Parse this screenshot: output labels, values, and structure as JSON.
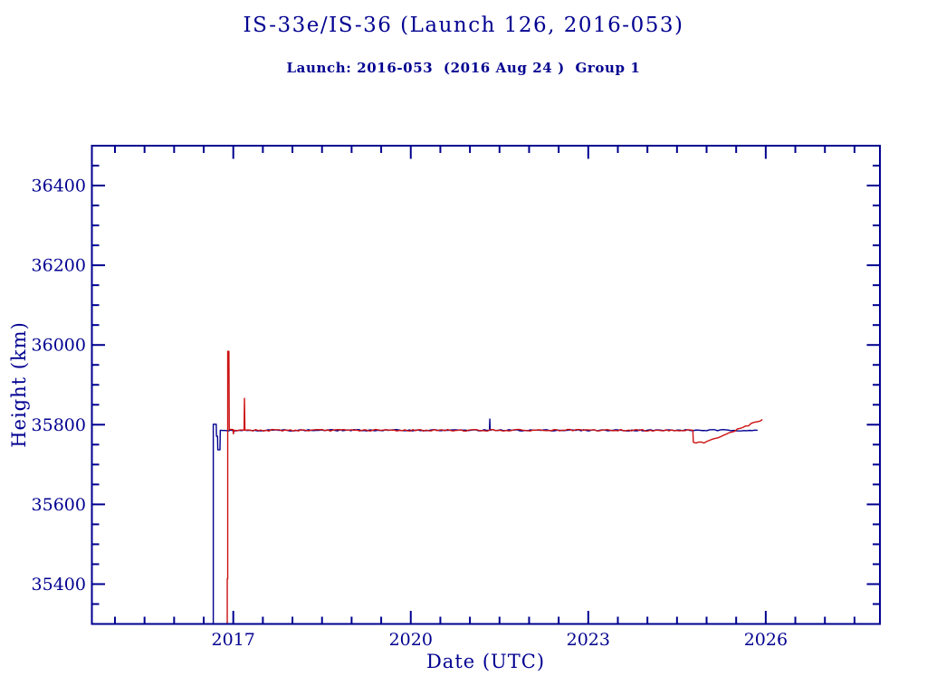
{
  "chart_data": {
    "type": "line",
    "title": "IS-33e/IS-36 (Launch 126, 2016-053)",
    "subtitle": "Launch: 2016-053  (2016 Aug 24 )  Group 1",
    "xlabel": "Date (UTC)",
    "ylabel": "Height (km)",
    "xlim": [
      2014.61,
      2027.93
    ],
    "ylim": [
      35300,
      36500
    ],
    "x_major_ticks": [
      2017,
      2020,
      2023,
      2026
    ],
    "x_minor_step": 0.5,
    "y_major_ticks": [
      35400,
      35600,
      35800,
      36000,
      36200,
      36400
    ],
    "y_minor_step": 50,
    "grid": false,
    "legend": "none",
    "axis_color": "#000090",
    "tick_label_color": "#000090",
    "background": "#ffffff",
    "series": [
      {
        "name": "blue-satellite",
        "color": "#000090",
        "noise_amp_km": 1.7,
        "points": [
          [
            2016.662,
            35288
          ],
          [
            2016.662,
            35801
          ],
          [
            2016.712,
            35801
          ],
          [
            2016.716,
            35771
          ],
          [
            2016.734,
            35771
          ],
          [
            2016.738,
            35737
          ],
          [
            2016.775,
            35737
          ],
          [
            2016.78,
            35786
          ],
          [
            2021.33,
            35786
          ],
          [
            2021.336,
            35814
          ],
          [
            2021.342,
            35786
          ],
          [
            2025.862,
            35786
          ]
        ]
      },
      {
        "name": "red-satellite",
        "color": "#cc1111",
        "noise_amp_km": 2.1,
        "points": [
          [
            2016.898,
            35288
          ],
          [
            2016.898,
            35413
          ],
          [
            2016.906,
            35413
          ],
          [
            2016.906,
            35984
          ],
          [
            2016.926,
            35984
          ],
          [
            2016.932,
            35788
          ],
          [
            2016.995,
            35788
          ],
          [
            2017.002,
            35777
          ],
          [
            2017.012,
            35786
          ],
          [
            2017.182,
            35786
          ],
          [
            2017.189,
            35866
          ],
          [
            2017.197,
            35786
          ],
          [
            2024.768,
            35786
          ],
          [
            2024.776,
            35756
          ],
          [
            2024.958,
            35754
          ],
          [
            2025.945,
            35813
          ]
        ]
      }
    ]
  }
}
